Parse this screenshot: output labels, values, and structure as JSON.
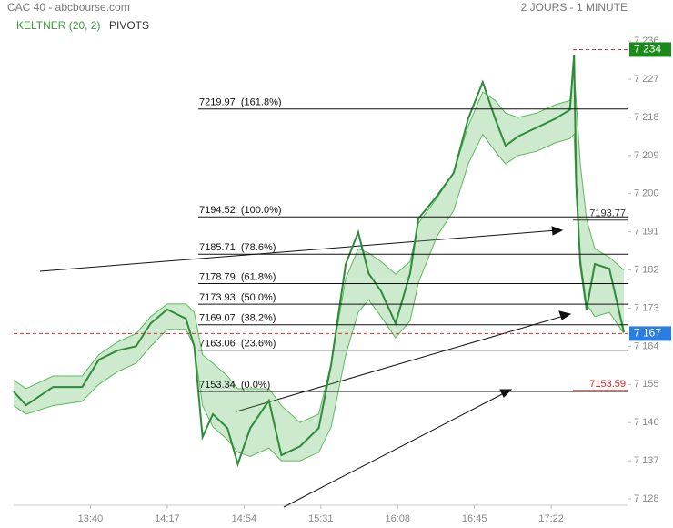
{
  "chart_data": {
    "type": "line",
    "title": "CAC 40 - abcbourse.com",
    "subtitle": "2 JOURS - 1 MINUTE",
    "indicator": "KELTNER (20, 2)",
    "pivots": "PIVOTS",
    "x": [
      "13:03",
      "13:09",
      "13:22",
      "13:36",
      "13:44",
      "13:53",
      "14:02",
      "14:09",
      "14:17",
      "14:26",
      "14:30",
      "14:34",
      "14:39",
      "14:46",
      "14:51",
      "14:57",
      "15:06",
      "15:12",
      "15:21",
      "15:30",
      "15:36",
      "15:43",
      "15:49",
      "15:54",
      "16:00",
      "16:07",
      "16:14",
      "16:18",
      "16:27",
      "16:35",
      "16:42",
      "16:49",
      "16:55",
      "17:00",
      "17:06",
      "17:15",
      "17:24",
      "17:31",
      "17:33",
      "17:34",
      "17:36",
      "17:39",
      "17:43",
      "17:50",
      "17:57"
    ],
    "values": [
      7153.3,
      7150.1,
      7154.4,
      7154.4,
      7160.8,
      7163,
      7164,
      7169.4,
      7172.7,
      7170.5,
      7164,
      7142.6,
      7148,
      7144.7,
      7136.2,
      7144.7,
      7151.2,
      7138.3,
      7140.4,
      7144.7,
      7159.8,
      7183.4,
      7190.9,
      7181.2,
      7177,
      7169.4,
      7181.2,
      7194.1,
      7199.5,
      7204.9,
      7217.7,
      7226.3,
      7217.7,
      7211.3,
      7213.5,
      7215.6,
      7217.7,
      7219.8,
      7232.8,
      7202.7,
      7183.4,
      7172.7,
      7183.4,
      7182.3,
      7167.3
    ],
    "color": "#2e8b3a",
    "band_upper": [
      7156,
      7154,
      7157,
      7157,
      7162,
      7165,
      7167,
      7171,
      7174,
      7174,
      7172,
      7162,
      7160,
      7157,
      7154,
      7154,
      7154,
      7150,
      7146,
      7148,
      7160,
      7180,
      7187,
      7186,
      7184,
      7181,
      7184,
      7193,
      7199,
      7205,
      7216,
      7224,
      7222,
      7219,
      7218,
      7219,
      7221,
      7222,
      7229,
      7222,
      7207,
      7194,
      7187,
      7185,
      7182
    ],
    "band_lower": [
      7150,
      7148,
      7150,
      7151,
      7155,
      7158,
      7160,
      7164,
      7168,
      7168,
      7164,
      7150,
      7145,
      7142,
      7139,
      7138,
      7140,
      7137,
      7137,
      7139,
      7145,
      7162,
      7172,
      7175,
      7171,
      7166,
      7170,
      7179,
      7190,
      7196,
      7207,
      7214,
      7210,
      7207,
      7209,
      7210,
      7212,
      7213,
      7214,
      7200,
      7185,
      7174,
      7171,
      7172,
      7167
    ],
    "band_color": "#5cb85c",
    "xlim": [
      "13:03",
      "17:57"
    ],
    "xticks": [
      "13:40",
      "14:17",
      "14:54",
      "15:31",
      "16:08",
      "16:45",
      "17:22"
    ],
    "ylim": [
      7126.5,
      7241.4
    ],
    "yticks": [
      {
        "value": 7236,
        "label": "7 236"
      },
      {
        "value": 7227,
        "label": "7 227"
      },
      {
        "value": 7218,
        "label": "7 218"
      },
      {
        "value": 7209,
        "label": "7 209"
      },
      {
        "value": 7200,
        "label": "7 200"
      },
      {
        "value": 7191,
        "label": "7 191"
      },
      {
        "value": 7182,
        "label": "7 182"
      },
      {
        "value": 7173,
        "label": "7 173"
      },
      {
        "value": 7164,
        "label": "7 164"
      },
      {
        "value": 7155,
        "label": "7 155"
      },
      {
        "value": 7146,
        "label": "7 146"
      },
      {
        "value": 7137,
        "label": "7 137"
      },
      {
        "value": 7128,
        "label": "7 128"
      }
    ],
    "fib_levels": [
      {
        "value": 7219.97,
        "label": "7219.97  (161.8%)"
      },
      {
        "value": 7194.52,
        "label": "7194.52  (100.0%)"
      },
      {
        "value": 7185.71,
        "label": "7185.71  (78.6%)"
      },
      {
        "value": 7178.79,
        "label": "7178.79  (61.8%)"
      },
      {
        "value": 7173.93,
        "label": "7173.93  (50.0%)"
      },
      {
        "value": 7169.07,
        "label": "7169.07  (38.2%)"
      },
      {
        "value": 7163.06,
        "label": "7163.06  (23.6%)"
      },
      {
        "value": 7153.34,
        "label": "7153.34  (0.0%)"
      }
    ],
    "level_tags": [
      {
        "value": 7193.77,
        "label": "7193.77",
        "color": "#333333"
      },
      {
        "value": 7153.59,
        "label": "7153.59",
        "color": "#cc2222"
      }
    ],
    "price_tags": [
      {
        "value": 7234,
        "label": "7 234",
        "color": "#1a8a1a"
      },
      {
        "value": 7167,
        "label": "7 167",
        "color": "#2a7de1"
      }
    ]
  }
}
